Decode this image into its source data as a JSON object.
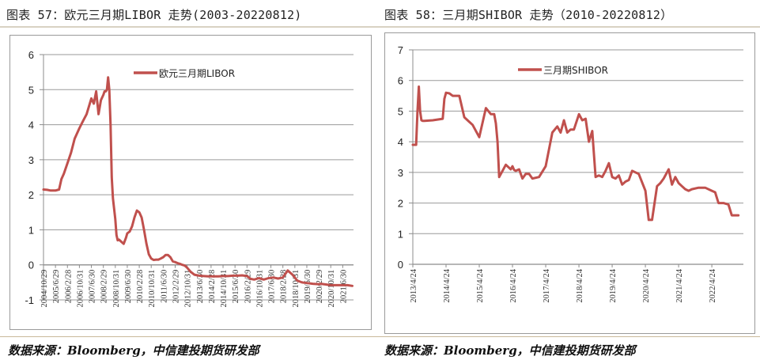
{
  "left": {
    "title": "图表 57：欧元三月期LIBOR 走势(2003-20220812)",
    "source": "数据来源：Bloomberg，中信建投期货研发部"
  },
  "right": {
    "title": "图表 58：三月期SHIBOR 走势（2010-20220812）",
    "source": "数据来源：Bloomberg，中信建投期货研发部"
  },
  "colors": {
    "line": "#c0504d",
    "grid": "#9a9a9a",
    "axis": "#8c8c8c"
  },
  "chart_data": [
    {
      "type": "line",
      "title": "欧元三月期LIBOR",
      "legend": [
        "欧元三月期LIBOR"
      ],
      "legend_position": "top-right inside",
      "xlabel": "",
      "ylabel": "",
      "ylim": [
        -1,
        6
      ],
      "yticks": [
        "6",
        "5",
        "4",
        "3",
        "2",
        "1",
        "0",
        "-1"
      ],
      "grid": true,
      "x_tick_labels": [
        "2004/10/29",
        "2005/6/29",
        "2006/2/28",
        "2006/10/31",
        "2007/6/30",
        "2008/2/29",
        "2008/10/31",
        "2009/6/30",
        "2010/2/28",
        "2010/10/31",
        "2011/6/30",
        "2012/2/29",
        "2012/10/31",
        "2013/6/30",
        "2014/2/28",
        "2014/10/31",
        "2015/6/30",
        "2016/2/29",
        "2016/10/31",
        "2017/6/30",
        "2018/2/28",
        "2018/10/31",
        "2019/6/30",
        "2020/2/29",
        "2020/10/31",
        "2021/6/30"
      ],
      "series": [
        {
          "name": "欧元三月期LIBOR",
          "x": [
            0,
            0.3,
            0.6,
            1.0,
            1.3,
            1.5,
            1.7,
            2.0,
            2.3,
            2.6,
            3.0,
            3.3,
            3.6,
            4.0,
            4.2,
            4.4,
            4.6,
            4.8,
            5.0,
            5.1,
            5.2,
            5.3,
            5.4,
            5.5,
            5.6,
            5.7,
            5.8,
            6.0,
            6.1,
            6.2,
            6.3,
            6.5,
            6.7,
            6.9,
            7.0,
            7.2,
            7.4,
            7.6,
            7.8,
            8.0,
            8.2,
            8.4,
            8.6,
            8.8,
            9.0,
            9.2,
            9.4,
            9.6,
            9.8,
            10.0,
            10.2,
            10.4,
            10.6,
            10.8,
            11.0,
            11.2,
            11.4,
            11.6,
            11.8,
            12.0,
            12.3,
            12.6,
            13.0,
            13.4,
            13.8,
            14.0,
            14.3,
            14.6,
            15.0,
            15.4,
            15.8,
            16.2,
            16.6,
            17.0,
            17.3,
            17.6,
            18.0,
            18.4,
            18.8,
            19.2,
            19.6,
            20.0,
            20.4,
            20.8,
            21.2,
            21.6,
            22.0,
            22.5,
            23.0,
            23.2,
            23.4,
            23.6,
            23.8,
            24.0,
            24.3,
            24.6,
            25.0,
            25.4,
            25.8
          ],
          "values": [
            2.15,
            2.14,
            2.12,
            2.12,
            2.15,
            2.45,
            2.6,
            2.9,
            3.2,
            3.6,
            3.9,
            4.1,
            4.3,
            4.75,
            4.6,
            4.95,
            4.3,
            4.7,
            4.85,
            4.95,
            4.95,
            5.0,
            5.35,
            5.0,
            4.0,
            2.5,
            1.9,
            1.3,
            0.85,
            0.7,
            0.72,
            0.66,
            0.6,
            0.78,
            0.9,
            0.95,
            1.1,
            1.35,
            1.55,
            1.5,
            1.35,
            1.0,
            0.6,
            0.3,
            0.18,
            0.14,
            0.15,
            0.15,
            0.18,
            0.22,
            0.28,
            0.28,
            0.22,
            0.1,
            0.08,
            0.05,
            0.03,
            0.0,
            -0.02,
            -0.08,
            -0.2,
            -0.28,
            -0.31,
            -0.32,
            -0.33,
            -0.33,
            -0.33,
            -0.33,
            -0.32,
            -0.32,
            -0.31,
            -0.31,
            -0.3,
            -0.32,
            -0.4,
            -0.42,
            -0.38,
            -0.42,
            -0.38,
            -0.36,
            -0.39,
            -0.36,
            -0.16,
            -0.28,
            -0.45,
            -0.5,
            -0.52,
            -0.54,
            -0.55,
            -0.54,
            -0.55,
            -0.56,
            -0.57,
            -0.58,
            -0.58,
            -0.58,
            -0.58,
            -0.58,
            -0.6
          ]
        }
      ]
    },
    {
      "type": "line",
      "title": "三月期SHIBOR",
      "legend": [
        "三月期SHIBOR"
      ],
      "legend_position": "top-right inside",
      "xlabel": "",
      "ylabel": "",
      "ylim": [
        0,
        7
      ],
      "yticks": [
        "7",
        "6",
        "5",
        "4",
        "3",
        "2",
        "1",
        "0"
      ],
      "grid": true,
      "x_tick_labels": [
        "2013/4/24",
        "2014/4/24",
        "2015/4/24",
        "2016/4/24",
        "2017/4/24",
        "2018/4/24",
        "2019/4/24",
        "2020/4/24",
        "2021/4/24",
        "2022/4/24"
      ],
      "series": [
        {
          "name": "三月期SHIBOR",
          "x": [
            0,
            0.05,
            0.1,
            0.14,
            0.18,
            0.22,
            0.26,
            0.3,
            0.35,
            0.6,
            0.9,
            0.95,
            1.0,
            1.1,
            1.2,
            1.4,
            1.55,
            1.6,
            1.7,
            1.8,
            2.0,
            2.2,
            2.35,
            2.4,
            2.45,
            2.5,
            2.55,
            2.6,
            2.8,
            2.95,
            3.0,
            3.05,
            3.1,
            3.2,
            3.3,
            3.4,
            3.5,
            3.6,
            3.8,
            4.0,
            4.2,
            4.35,
            4.45,
            4.55,
            4.65,
            4.75,
            4.85,
            5.0,
            5.1,
            5.2,
            5.3,
            5.4,
            5.5,
            5.6,
            5.7,
            5.8,
            5.9,
            6.0,
            6.1,
            6.2,
            6.3,
            6.4,
            6.5,
            6.6,
            6.8,
            7.0,
            7.1,
            7.2,
            7.35,
            7.45,
            7.55,
            7.7,
            7.8,
            7.9,
            8.0,
            8.1,
            8.2,
            8.3,
            8.4,
            8.6,
            8.8,
            9.0,
            9.1,
            9.2,
            9.35,
            9.5,
            9.6,
            9.7,
            9.8
          ],
          "values": [
            3.9,
            3.9,
            3.9,
            5.0,
            5.8,
            5.0,
            4.7,
            4.68,
            4.68,
            4.7,
            4.75,
            5.4,
            5.6,
            5.58,
            5.5,
            5.5,
            4.8,
            4.75,
            4.65,
            4.55,
            4.15,
            5.1,
            4.9,
            4.9,
            4.9,
            4.6,
            4.0,
            2.85,
            3.25,
            3.1,
            3.2,
            3.08,
            3.05,
            3.1,
            2.8,
            2.95,
            2.95,
            2.8,
            2.85,
            3.2,
            4.3,
            4.5,
            4.3,
            4.7,
            4.3,
            4.4,
            4.4,
            4.9,
            4.7,
            4.75,
            4.0,
            4.35,
            2.85,
            2.9,
            2.85,
            3.05,
            3.3,
            2.85,
            2.8,
            2.9,
            2.6,
            2.7,
            2.75,
            3.05,
            2.95,
            2.4,
            1.45,
            1.45,
            2.55,
            2.65,
            2.8,
            3.1,
            2.6,
            2.85,
            2.65,
            2.55,
            2.45,
            2.4,
            2.45,
            2.5,
            2.5,
            2.4,
            2.35,
            2.0,
            2.0,
            1.95,
            1.6,
            1.6,
            1.6
          ]
        }
      ]
    }
  ]
}
